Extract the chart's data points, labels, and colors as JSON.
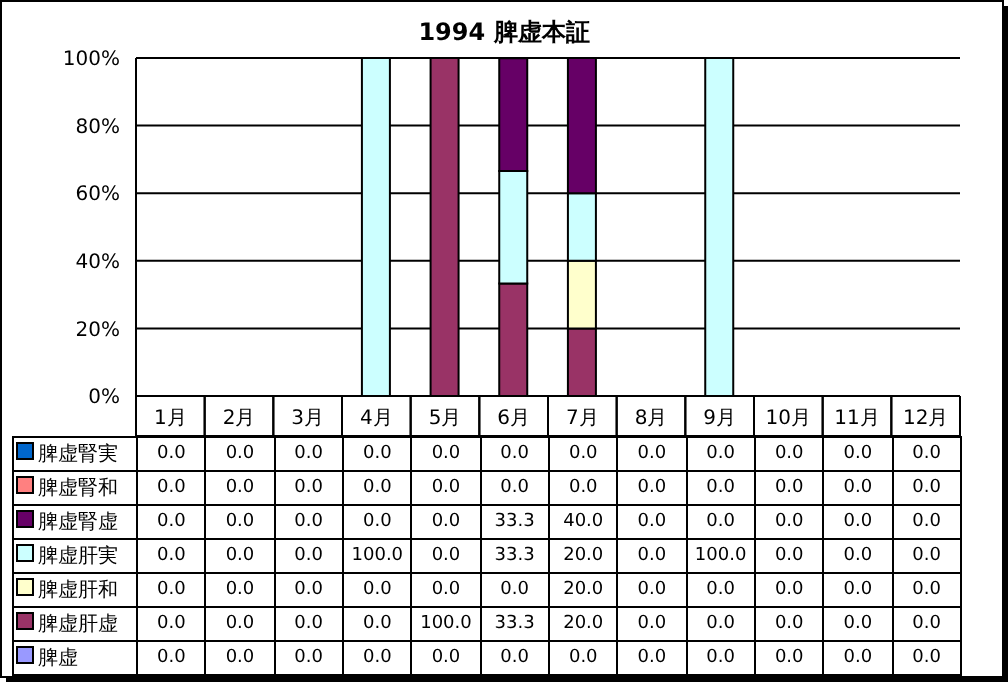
{
  "chart_data": {
    "type": "bar",
    "title": "1994 脾虚本証",
    "stacked": true,
    "grid": "y",
    "legend": "bottom",
    "categories": [
      "1月",
      "2月",
      "3月",
      "4月",
      "5月",
      "6月",
      "7月",
      "8月",
      "9月",
      "10月",
      "11月",
      "12月"
    ],
    "ylim": [
      0,
      100
    ],
    "yticks": [
      {
        "value": 0,
        "label": "0%"
      },
      {
        "value": 20,
        "label": "20%"
      },
      {
        "value": 40,
        "label": "40%"
      },
      {
        "value": 60,
        "label": "60%"
      },
      {
        "value": 80,
        "label": "80%"
      },
      {
        "value": 100,
        "label": "100%"
      }
    ],
    "series": [
      {
        "name": "脾虚",
        "color": "#9999ff",
        "values": [
          0,
          0,
          0,
          0,
          0,
          0,
          0,
          0,
          0,
          0,
          0,
          0
        ],
        "value_labels": [
          "0.0",
          "0.0",
          "0.0",
          "0.0",
          "0.0",
          "0.0",
          "0.0",
          "0.0",
          "0.0",
          "0.0",
          "0.0",
          "0.0"
        ]
      },
      {
        "name": "脾虚肝虚",
        "color": "#993366",
        "values": [
          0,
          0,
          0,
          0,
          100,
          33.3,
          20,
          0,
          0,
          0,
          0,
          0
        ],
        "value_labels": [
          "0.0",
          "0.0",
          "0.0",
          "0.0",
          "100.0",
          "33.3",
          "20.0",
          "0.0",
          "0.0",
          "0.0",
          "0.0",
          "0.0"
        ]
      },
      {
        "name": "脾虚肝和",
        "color": "#ffffcc",
        "values": [
          0,
          0,
          0,
          0,
          0,
          0,
          20,
          0,
          0,
          0,
          0,
          0
        ],
        "value_labels": [
          "0.0",
          "0.0",
          "0.0",
          "0.0",
          "0.0",
          "0.0",
          "20.0",
          "0.0",
          "0.0",
          "0.0",
          "0.0",
          "0.0"
        ]
      },
      {
        "name": "脾虚肝実",
        "color": "#ccffff",
        "values": [
          0,
          0,
          0,
          100,
          0,
          33.3,
          20,
          0,
          100,
          0,
          0,
          0
        ],
        "value_labels": [
          "0.0",
          "0.0",
          "0.0",
          "100.0",
          "0.0",
          "33.3",
          "20.0",
          "0.0",
          "100.0",
          "0.0",
          "0.0",
          "0.0"
        ]
      },
      {
        "name": "脾虚腎虚",
        "color": "#660066",
        "values": [
          0,
          0,
          0,
          0,
          0,
          33.3,
          40,
          0,
          0,
          0,
          0,
          0
        ],
        "value_labels": [
          "0.0",
          "0.0",
          "0.0",
          "0.0",
          "0.0",
          "33.3",
          "40.0",
          "0.0",
          "0.0",
          "0.0",
          "0.0",
          "0.0"
        ]
      },
      {
        "name": "脾虚腎和",
        "color": "#ff8080",
        "values": [
          0,
          0,
          0,
          0,
          0,
          0,
          0,
          0,
          0,
          0,
          0,
          0
        ],
        "value_labels": [
          "0.0",
          "0.0",
          "0.0",
          "0.0",
          "0.0",
          "0.0",
          "0.0",
          "0.0",
          "0.0",
          "0.0",
          "0.0",
          "0.0"
        ]
      },
      {
        "name": "脾虚腎実",
        "color": "#0066cc",
        "values": [
          0,
          0,
          0,
          0,
          0,
          0,
          0,
          0,
          0,
          0,
          0,
          0
        ],
        "value_labels": [
          "0.0",
          "0.0",
          "0.0",
          "0.0",
          "0.0",
          "0.0",
          "0.0",
          "0.0",
          "0.0",
          "0.0",
          "0.0",
          "0.0"
        ]
      }
    ]
  }
}
